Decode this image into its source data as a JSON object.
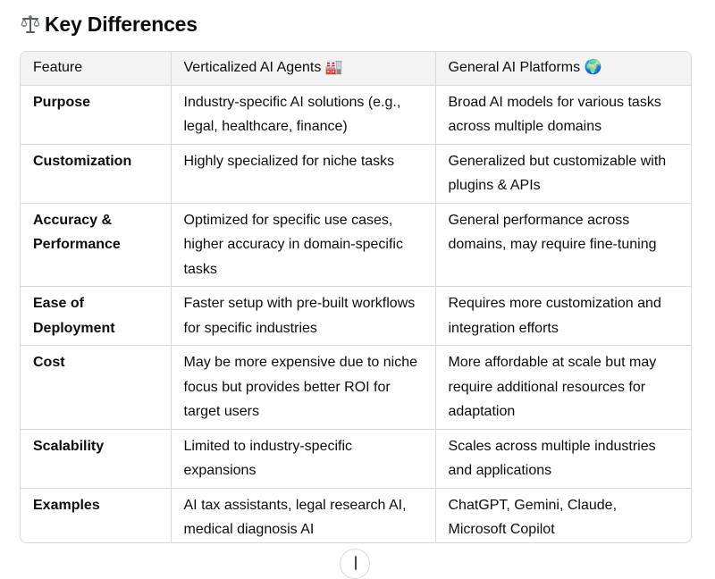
{
  "heading": {
    "icon": "scales-icon",
    "title": "Key Differences"
  },
  "table": {
    "headers": [
      "Feature",
      "Verticalized AI Agents 🏭",
      "General AI Platforms 🌍"
    ],
    "rows": [
      [
        "Purpose",
        "Industry-specific AI solutions (e.g., legal, healthcare, finance)",
        "Broad AI models for various tasks across multiple domains"
      ],
      [
        "Customization",
        "Highly specialized for niche tasks",
        "Generalized but customizable with plugins & APIs"
      ],
      [
        "Accuracy & Performance",
        "Optimized for specific use cases, higher accuracy in domain-specific tasks",
        "General performance across domains, may require fine-tuning"
      ],
      [
        "Ease of Deployment",
        "Faster setup with pre-built workflows for specific industries",
        "Requires more customization and integration efforts"
      ],
      [
        "Cost",
        "May be more expensive due to niche focus but provides better ROI for target users",
        "More affordable at scale but may require additional resources for adaptation"
      ],
      [
        "Scalability",
        "Limited to industry-specific expansions",
        "Scales across multiple industries and applications"
      ],
      [
        "Examples",
        "AI tax assistants, legal research AI, medical diagnosis AI",
        "ChatGPT, Gemini, Claude, Microsoft Copilot"
      ]
    ]
  },
  "scroll_button": {
    "icon": "arrow-down-icon"
  }
}
